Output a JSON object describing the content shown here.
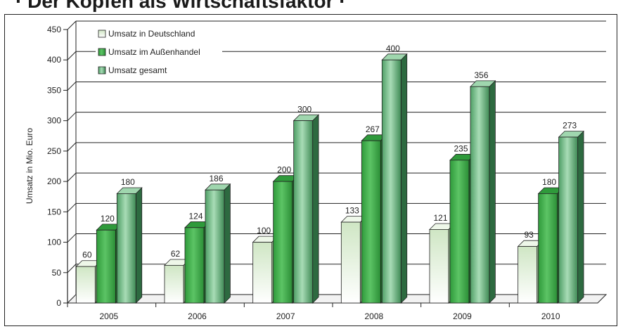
{
  "page": {
    "title_text": "· Der Kopfen als Wirtschaftsfaktor ·"
  },
  "chart_data": {
    "type": "bar",
    "title": "",
    "xlabel": "",
    "ylabel": "Umsatz in Mio. Euro",
    "ylim": [
      0,
      450
    ],
    "yticks": [
      0,
      50,
      100,
      150,
      200,
      250,
      300,
      350,
      400,
      450
    ],
    "categories": [
      "2005",
      "2006",
      "2007",
      "2008",
      "2009",
      "2010"
    ],
    "series": [
      {
        "name": "Umsatz in Deutschland",
        "values": [
          60,
          62,
          100,
          133,
          121,
          93
        ],
        "color": "#dff0d6"
      },
      {
        "name": "Umsatz im Außenhandel",
        "values": [
          120,
          124,
          200,
          267,
          235,
          180
        ],
        "color": "#3fae49"
      },
      {
        "name": "Umsatz gesamt",
        "values": [
          180,
          186,
          300,
          400,
          356,
          273
        ],
        "color": "#7fc48f"
      }
    ],
    "grid": true,
    "legend_position": "top-left"
  }
}
